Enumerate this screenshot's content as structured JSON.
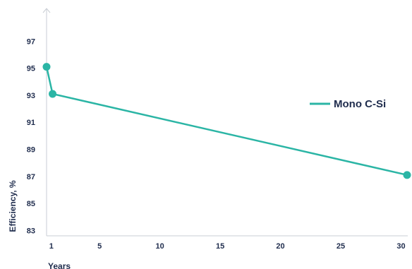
{
  "chart_data": {
    "type": "line",
    "xlabel": "Years",
    "ylabel": "Efficiency, %",
    "x_ticks": [
      1,
      5,
      10,
      15,
      20,
      25,
      30
    ],
    "y_ticks": [
      83,
      85,
      87,
      89,
      91,
      93,
      95,
      97
    ],
    "xlim": [
      0.6,
      30.5
    ],
    "ylim": [
      82.6,
      99
    ],
    "grid": false,
    "legend_position": "right",
    "series": [
      {
        "name": "Mono C-Si",
        "color": "#2bb5a5",
        "x": [
          0.6,
          1.1,
          30.5
        ],
        "y": [
          95.1,
          93.1,
          87.1
        ]
      }
    ]
  }
}
